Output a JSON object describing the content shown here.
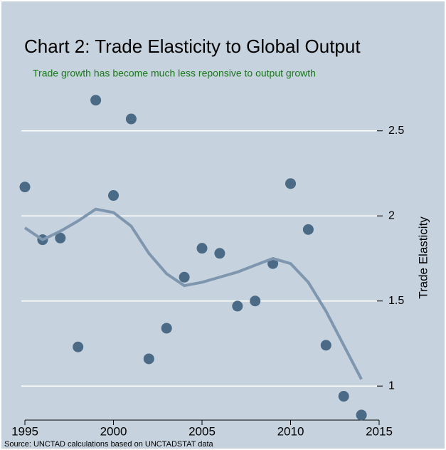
{
  "chart_data": {
    "type": "scatter",
    "title": "Chart 2: Trade Elasticity to Global Output",
    "subtitle": "Trade growth has become much less reponsive to output growth",
    "y_label": "Trade Elasticity",
    "source": "Source: UNCTAD calculations based on UNCTADSTAT data",
    "x": [
      1995,
      1996,
      1997,
      1998,
      1999,
      2000,
      2001,
      2002,
      2003,
      2004,
      2005,
      2006,
      2007,
      2008,
      2009,
      2010,
      2011,
      2012,
      2013,
      2014
    ],
    "series": [
      {
        "style": "points",
        "color": "#4a6a85",
        "values": [
          2.17,
          1.86,
          1.87,
          1.23,
          2.68,
          2.12,
          2.57,
          1.16,
          1.34,
          1.64,
          1.81,
          1.78,
          1.47,
          1.5,
          1.72,
          2.19,
          1.92,
          1.24,
          0.94,
          0.83
        ]
      },
      {
        "style": "line",
        "color": "#7f97ae",
        "values": [
          1.93,
          1.86,
          1.91,
          1.97,
          2.04,
          2.02,
          1.94,
          1.78,
          1.66,
          1.59,
          1.61,
          1.64,
          1.67,
          1.71,
          1.75,
          1.72,
          1.61,
          1.44,
          1.24,
          1.04
        ]
      }
    ],
    "xlim": [
      1995,
      2015
    ],
    "xticks": [
      1995,
      2000,
      2005,
      2010,
      2015
    ],
    "ylim": [
      0.8,
      2.75
    ],
    "yticks": [
      1,
      1.5,
      2,
      2.5
    ],
    "y_axis_side": "right",
    "grid": true
  }
}
